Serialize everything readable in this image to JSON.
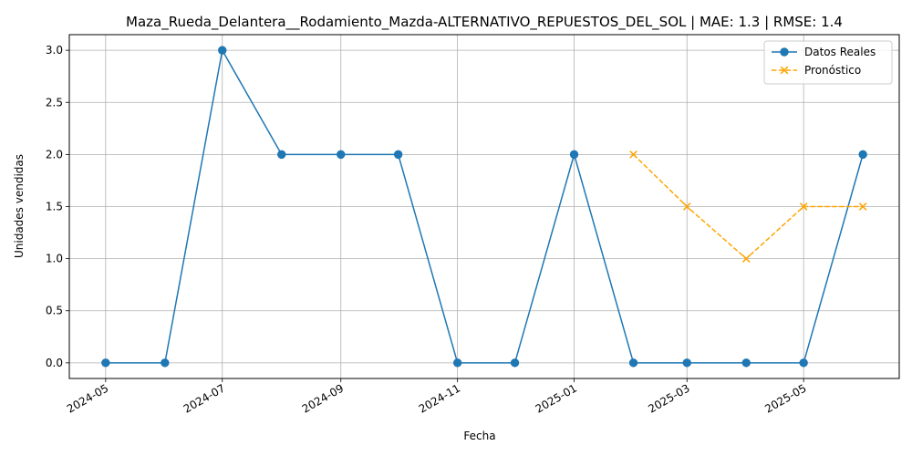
{
  "chart_data": {
    "type": "line",
    "title": "Maza_Rueda_Delantera__Rodamiento_Mazda-ALTERNATIVO_REPUESTOS_DEL_SOL | MAE: 1.3 | RMSE: 1.4",
    "xlabel": "Fecha",
    "ylabel": "Unidades vendidas",
    "ylim": [
      -0.15,
      3.15
    ],
    "xlim": [
      "2024-04-12",
      "2025-06-20"
    ],
    "grid": true,
    "legend_position": "top-right",
    "x_ticks": [
      {
        "date": "2024-05-01",
        "label": "2024-05"
      },
      {
        "date": "2024-07-01",
        "label": "2024-07"
      },
      {
        "date": "2024-09-01",
        "label": "2024-09"
      },
      {
        "date": "2024-11-01",
        "label": "2024-11"
      },
      {
        "date": "2025-01-01",
        "label": "2025-01"
      },
      {
        "date": "2025-03-01",
        "label": "2025-03"
      },
      {
        "date": "2025-05-01",
        "label": "2025-05"
      }
    ],
    "y_ticks": [
      {
        "value": 0.0,
        "label": "0.0"
      },
      {
        "value": 0.5,
        "label": "0.5"
      },
      {
        "value": 1.0,
        "label": "1.0"
      },
      {
        "value": 1.5,
        "label": "1.5"
      },
      {
        "value": 2.0,
        "label": "2.0"
      },
      {
        "value": 2.5,
        "label": "2.5"
      },
      {
        "value": 3.0,
        "label": "3.0"
      }
    ],
    "series": [
      {
        "name": "Datos Reales",
        "color": "#1f77b4",
        "linestyle": "solid",
        "marker": "circle",
        "x": [
          "2024-05-01",
          "2024-06-01",
          "2024-07-01",
          "2024-08-01",
          "2024-09-01",
          "2024-10-01",
          "2024-11-01",
          "2024-12-01",
          "2025-01-01",
          "2025-02-01",
          "2025-03-01",
          "2025-04-01",
          "2025-05-01",
          "2025-06-01"
        ],
        "values": [
          0,
          0,
          3,
          2,
          2,
          2,
          0,
          0,
          2,
          0,
          0,
          0,
          0,
          2
        ]
      },
      {
        "name": "Pronóstico",
        "color": "#ffa500",
        "linestyle": "dashed",
        "marker": "x",
        "x": [
          "2025-02-01",
          "2025-03-01",
          "2025-04-01",
          "2025-05-01",
          "2025-06-01"
        ],
        "values": [
          2,
          1.5,
          1,
          1.5,
          1.5
        ]
      }
    ]
  }
}
